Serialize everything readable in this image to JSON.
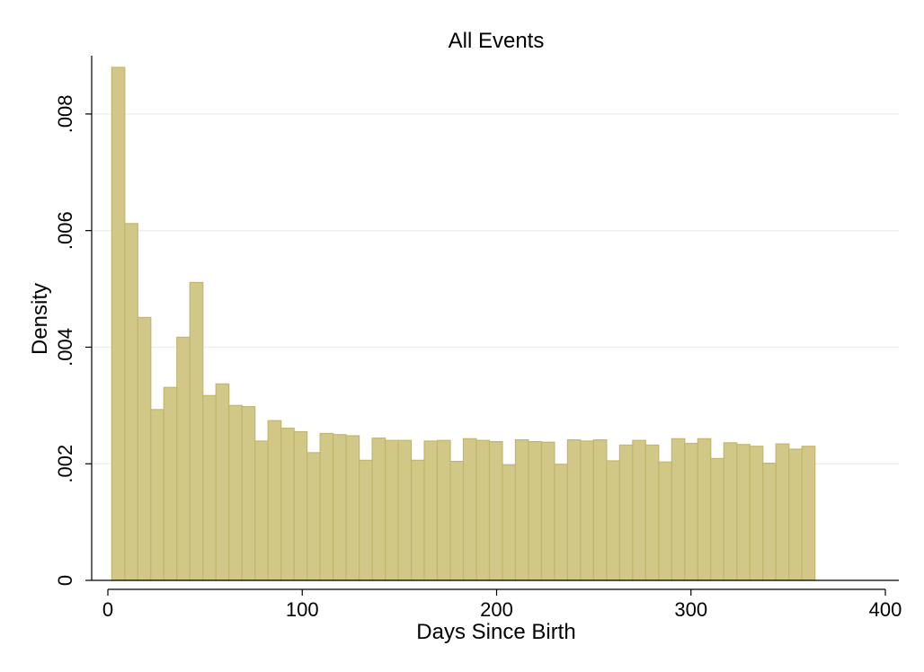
{
  "colors": {
    "bar_fill": "#d1c786",
    "bar_edge": "#c2b66e",
    "grid": "#eaf0ef",
    "axis": "#000000"
  },
  "chart_data": {
    "type": "bar",
    "subtype": "histogram",
    "title": "All Events",
    "xlabel": "Days Since Birth",
    "ylabel": "Density",
    "xlim": [
      0,
      400
    ],
    "ylim": [
      0,
      0.009
    ],
    "xticks": [
      0,
      100,
      200,
      300,
      400
    ],
    "xtick_labels": [
      "0",
      "100",
      "200",
      "300",
      "400"
    ],
    "yticks": [
      0,
      0.002,
      0.004,
      0.006,
      0.008
    ],
    "ytick_labels": [
      "0",
      ".002",
      ".004",
      ".006",
      ".008"
    ],
    "grid": true,
    "legend": "none",
    "bin_start": 2,
    "bin_width": 6.7,
    "values": [
      0.0088,
      0.00612,
      0.00451,
      0.00293,
      0.00331,
      0.00417,
      0.00511,
      0.00317,
      0.00337,
      0.003,
      0.00298,
      0.00239,
      0.00274,
      0.00261,
      0.00255,
      0.00219,
      0.00252,
      0.0025,
      0.00248,
      0.00206,
      0.00244,
      0.0024,
      0.0024,
      0.00206,
      0.00239,
      0.0024,
      0.00204,
      0.00243,
      0.0024,
      0.00238,
      0.00198,
      0.00241,
      0.00238,
      0.00237,
      0.00199,
      0.00241,
      0.00239,
      0.00241,
      0.00205,
      0.00232,
      0.0024,
      0.00232,
      0.00203,
      0.00243,
      0.00235,
      0.00243,
      0.00209,
      0.00236,
      0.00233,
      0.0023,
      0.00201,
      0.00234,
      0.00225,
      0.0023
    ]
  }
}
